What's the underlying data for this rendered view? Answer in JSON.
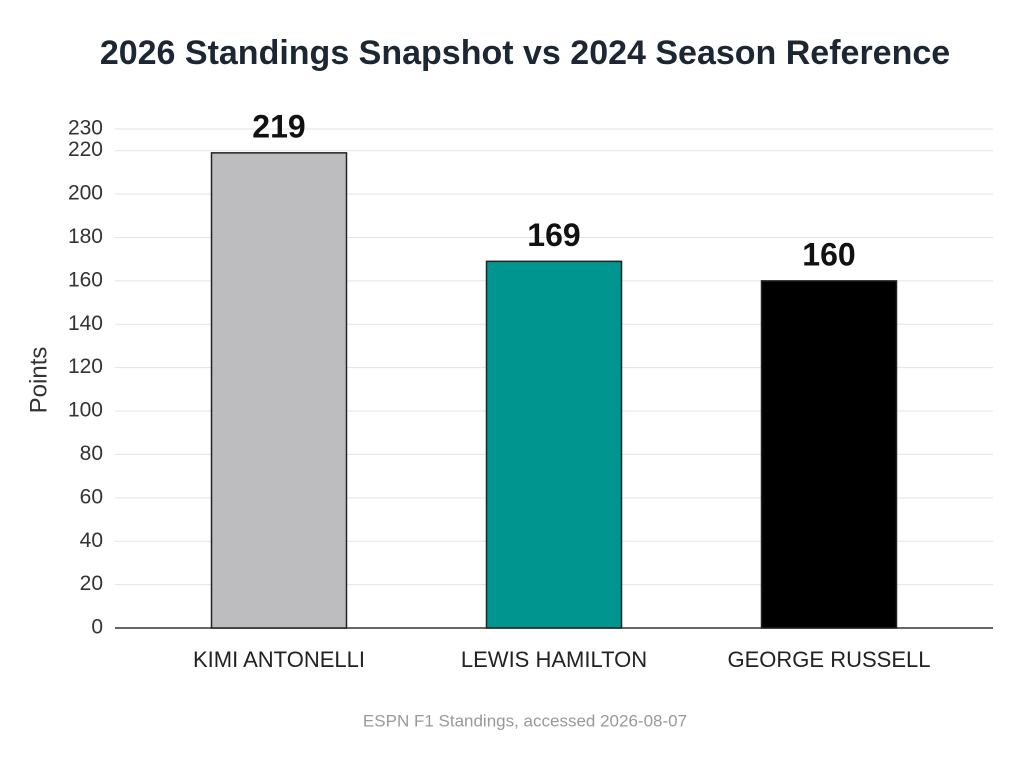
{
  "chart_data": {
    "type": "bar",
    "title": "2026 Standings Snapshot vs 2024 Season Reference",
    "ylabel": "Points",
    "source": "ESPN F1 Standings, accessed 2026-08-07",
    "categories": [
      "KIMI ANTONELLI",
      "LEWIS HAMILTON",
      "GEORGE RUSSELL"
    ],
    "values": [
      219,
      169,
      160
    ],
    "colors": [
      "#bdbdc0",
      "#00968f",
      "#000000"
    ],
    "ylim": [
      0,
      230
    ],
    "yticks": [
      0,
      20,
      40,
      60,
      80,
      100,
      120,
      140,
      160,
      180,
      200,
      220,
      230
    ],
    "grid": true
  }
}
